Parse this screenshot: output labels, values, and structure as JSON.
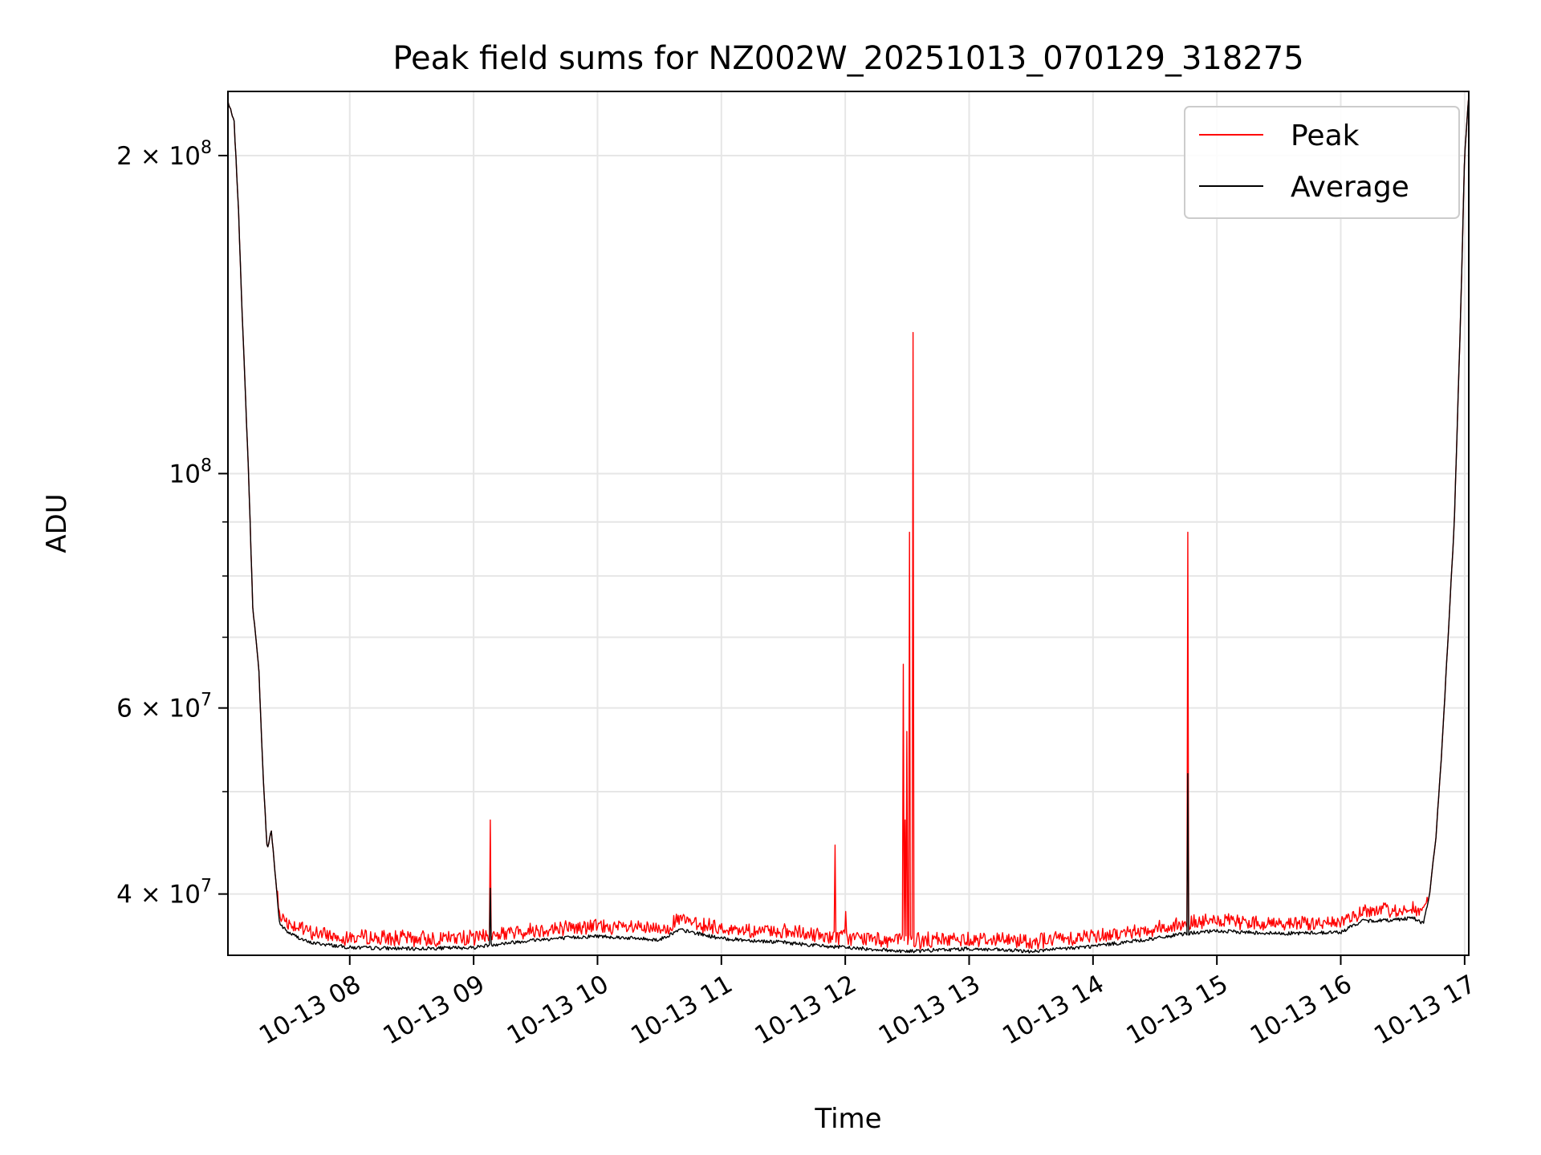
{
  "chart_data": {
    "type": "line",
    "title": "Peak field sums for NZ002W_20251013_070129_318275",
    "xlabel": "Time",
    "ylabel": "ADU",
    "yscale": "log",
    "grid": true,
    "legend_placement": "top-right",
    "xlim": [
      "2025-10-13 07:01",
      "2025-10-13 17:02"
    ],
    "ylim": [
      35000000,
      230000000
    ],
    "x_ticks": [
      {
        "time": "2025-10-13 08:00",
        "label": "10-13 08"
      },
      {
        "time": "2025-10-13 09:00",
        "label": "10-13 09"
      },
      {
        "time": "2025-10-13 10:00",
        "label": "10-13 10"
      },
      {
        "time": "2025-10-13 11:00",
        "label": "10-13 11"
      },
      {
        "time": "2025-10-13 12:00",
        "label": "10-13 12"
      },
      {
        "time": "2025-10-13 13:00",
        "label": "10-13 13"
      },
      {
        "time": "2025-10-13 14:00",
        "label": "10-13 14"
      },
      {
        "time": "2025-10-13 15:00",
        "label": "10-13 15"
      },
      {
        "time": "2025-10-13 16:00",
        "label": "10-13 16"
      },
      {
        "time": "2025-10-13 17:00",
        "label": "10-13 17"
      }
    ],
    "y_ticks": [
      {
        "value": 40000000,
        "mantissa": "4",
        "exponent": "7"
      },
      {
        "value": 60000000,
        "mantissa": "6",
        "exponent": "7"
      },
      {
        "value": 100000000,
        "mantissa": "",
        "exponent": "8"
      },
      {
        "value": 200000000,
        "mantissa": "2",
        "exponent": "8"
      }
    ],
    "y_minor_ticks": [
      50000000,
      70000000,
      80000000,
      90000000
    ],
    "series": [
      {
        "name": "Average",
        "color": "#000000",
        "points": [
          [
            "2025-10-13 07:01",
            225000000
          ],
          [
            "2025-10-13 07:04",
            215000000
          ],
          [
            "2025-10-13 07:06",
            180000000
          ],
          [
            "2025-10-13 07:08",
            140000000
          ],
          [
            "2025-10-13 07:11",
            100000000
          ],
          [
            "2025-10-13 07:13",
            75000000
          ],
          [
            "2025-10-13 07:16",
            65000000
          ],
          [
            "2025-10-13 07:18",
            52000000
          ],
          [
            "2025-10-13 07:20",
            44000000
          ],
          [
            "2025-10-13 07:22",
            46000000
          ],
          [
            "2025-10-13 07:26",
            37500000
          ],
          [
            "2025-10-13 07:30",
            36800000
          ],
          [
            "2025-10-13 07:40",
            36000000
          ],
          [
            "2025-10-13 08:00",
            35600000
          ],
          [
            "2025-10-13 08:30",
            35500000
          ],
          [
            "2025-10-13 09:00",
            35600000
          ],
          [
            "2025-10-13 09:08",
            35800000
          ],
          [
            "2025-10-13 09:30",
            36200000
          ],
          [
            "2025-10-13 10:00",
            36500000
          ],
          [
            "2025-10-13 10:30",
            36200000
          ],
          [
            "2025-10-13 10:40",
            37000000
          ],
          [
            "2025-10-13 11:00",
            36300000
          ],
          [
            "2025-10-13 11:30",
            36000000
          ],
          [
            "2025-10-13 11:50",
            35700000
          ],
          [
            "2025-10-13 12:00",
            35600000
          ],
          [
            "2025-10-13 12:30",
            35300000
          ],
          [
            "2025-10-13 13:00",
            35500000
          ],
          [
            "2025-10-13 13:30",
            35300000
          ],
          [
            "2025-10-13 14:00",
            35700000
          ],
          [
            "2025-10-13 14:30",
            36300000
          ],
          [
            "2025-10-13 14:45",
            36700000
          ],
          [
            "2025-10-13 15:00",
            36900000
          ],
          [
            "2025-10-13 15:30",
            36700000
          ],
          [
            "2025-10-13 16:00",
            36800000
          ],
          [
            "2025-10-13 16:10",
            37700000
          ],
          [
            "2025-10-13 16:25",
            37800000
          ],
          [
            "2025-10-13 16:35",
            38000000
          ],
          [
            "2025-10-13 16:40",
            37500000
          ],
          [
            "2025-10-13 16:43",
            40000000
          ],
          [
            "2025-10-13 16:46",
            45000000
          ],
          [
            "2025-10-13 16:49",
            55000000
          ],
          [
            "2025-10-13 16:52",
            70000000
          ],
          [
            "2025-10-13 16:55",
            90000000
          ],
          [
            "2025-10-13 16:58",
            140000000
          ],
          [
            "2025-10-13 17:00",
            200000000
          ],
          [
            "2025-10-13 17:02",
            228000000
          ]
        ],
        "spikes": [
          [
            "2025-10-13 09:08",
            40500000
          ],
          [
            "2025-10-13 14:46",
            52000000
          ]
        ]
      },
      {
        "name": "Peak",
        "color": "#ff0000",
        "baseline_offset": 800000,
        "noise_window": [
          "2025-10-13 07:25",
          "2025-10-13 16:42"
        ],
        "spikes": [
          [
            "2025-10-13 09:08",
            47000000
          ],
          [
            "2025-10-13 11:55",
            44500000
          ],
          [
            "2025-10-13 12:00",
            38500000
          ],
          [
            "2025-10-13 12:28",
            66000000
          ],
          [
            "2025-10-13 12:29",
            47000000
          ],
          [
            "2025-10-13 12:30",
            57000000
          ],
          [
            "2025-10-13 12:31",
            88000000
          ],
          [
            "2025-10-13 12:33",
            136000000
          ],
          [
            "2025-10-13 14:46",
            88000000
          ]
        ]
      }
    ]
  }
}
